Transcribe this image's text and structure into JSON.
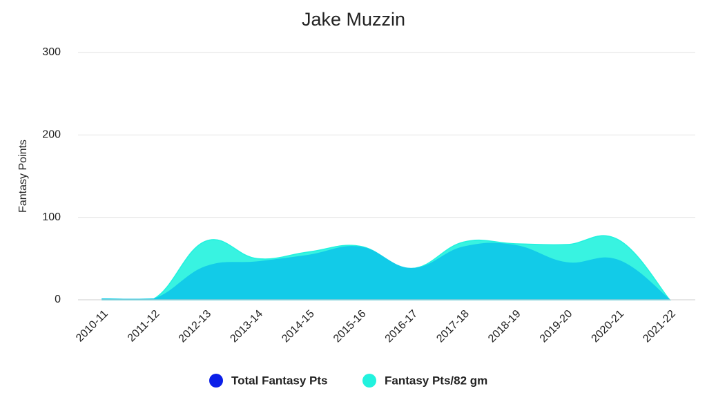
{
  "chart_data": {
    "type": "area",
    "title": "Jake Muzzin",
    "y_label": "Fantasy Points",
    "categories": [
      "2010-11",
      "2011-12",
      "2012-13",
      "2013-14",
      "2014-15",
      "2015-16",
      "2016-17",
      "2017-18",
      "2018-19",
      "2019-20",
      "2020-21",
      "2021-22"
    ],
    "series": [
      {
        "name": "Total Fantasy Pts",
        "color": "#0b1fe8",
        "values": [
          1,
          1,
          40,
          46,
          54,
          64,
          38,
          64,
          66,
          45,
          48,
          0
        ]
      },
      {
        "name": "Fantasy Pts/82 gm",
        "color": "#22f2de",
        "values": [
          1,
          1,
          71,
          50,
          58,
          65,
          38,
          70,
          68,
          67,
          73,
          0
        ]
      }
    ],
    "ylim": [
      0,
      300
    ],
    "yticks": [
      0,
      100,
      200,
      300
    ],
    "grid": true,
    "legend": "bottom"
  }
}
